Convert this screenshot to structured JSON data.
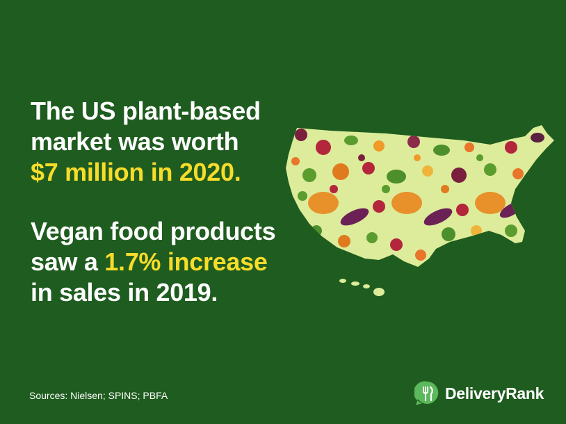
{
  "headline": {
    "line1": "The US plant-based",
    "line2": "market was worth",
    "line3": "$7 million in 2020."
  },
  "stat2": {
    "line1": "Vegan food products",
    "line2_pre": "saw a ",
    "line2_hl": "1.7% increase",
    "line3": "in sales in 2019."
  },
  "sources": "Sources: Nielsen; SPINS; PBFA",
  "brand": {
    "name": "DeliveryRank"
  },
  "colors": {
    "background": "#1f5c1f",
    "highlight": "#f7dc2a",
    "map_fill": "#dcec9a",
    "brand_green": "#5cb85c"
  },
  "icons": [
    "us-map-vegetable-pattern",
    "deliveryrank-logo-icon"
  ]
}
